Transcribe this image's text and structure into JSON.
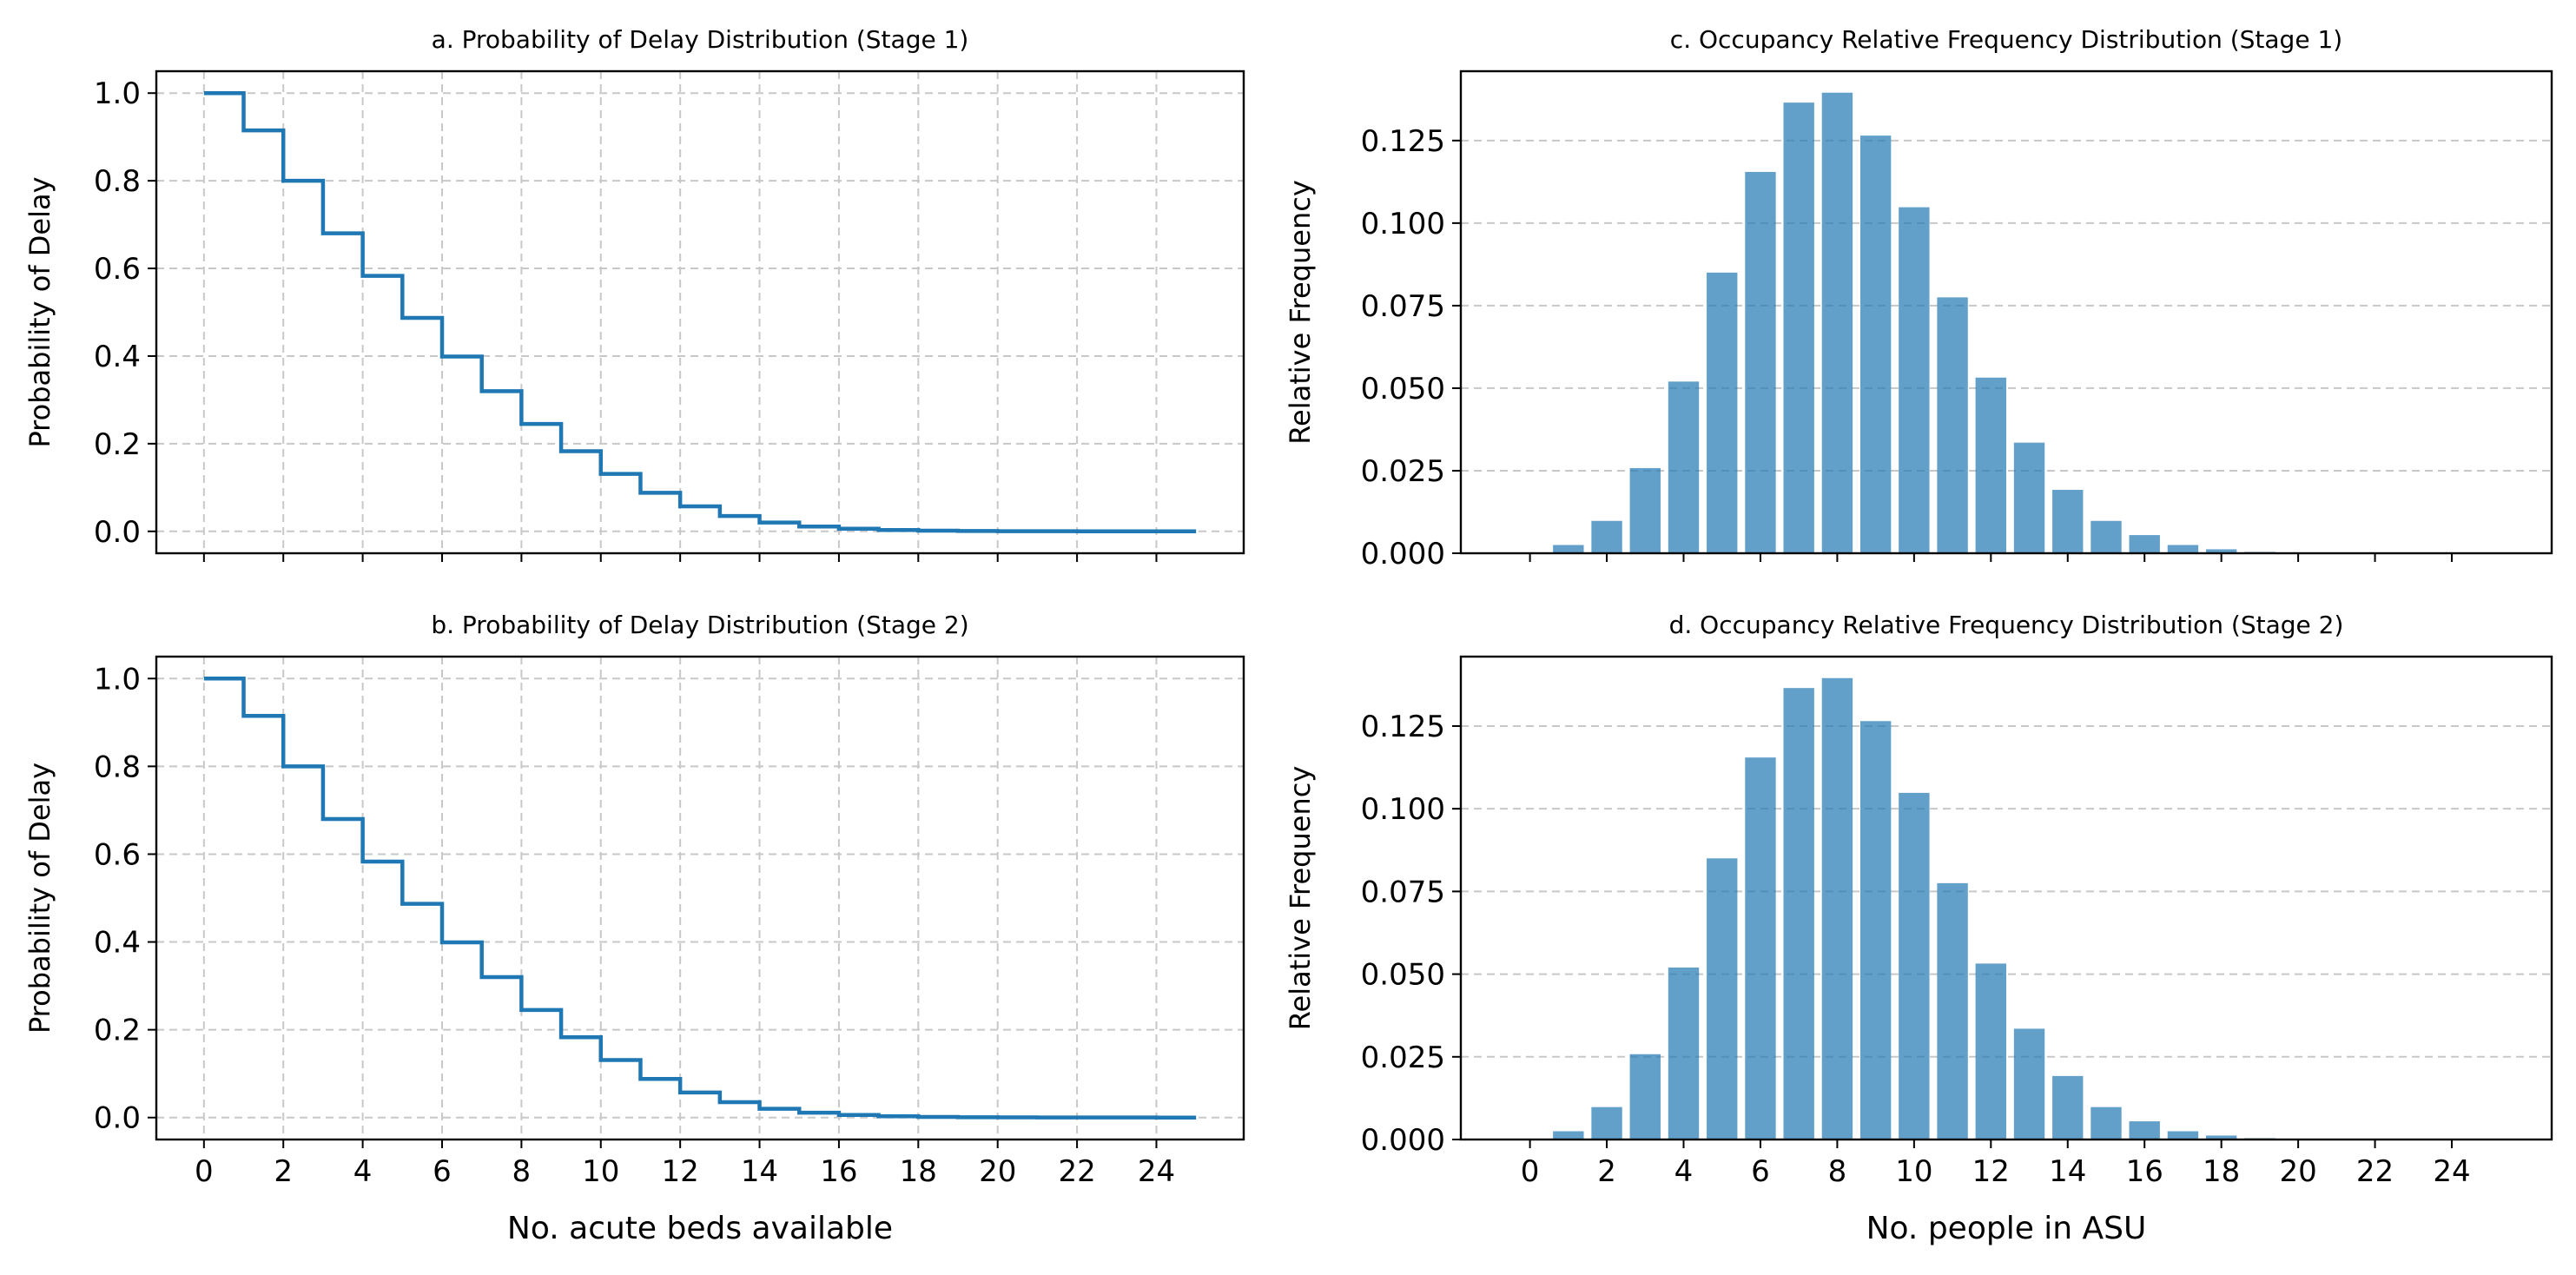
{
  "chart_data": [
    {
      "id": "a",
      "type": "line",
      "step": "post",
      "title": "a. Probability of Delay Distribution (Stage 1)",
      "xlabel": "",
      "ylabel": "Probability of Delay",
      "x": [
        0,
        1,
        2,
        3,
        4,
        5,
        6,
        7,
        8,
        9,
        10,
        11,
        12,
        13,
        14,
        15,
        16,
        17,
        18,
        19,
        20,
        21,
        22,
        23,
        24,
        25
      ],
      "y": [
        1.0,
        0.915,
        0.8,
        0.68,
        0.583,
        0.487,
        0.399,
        0.32,
        0.245,
        0.183,
        0.131,
        0.088,
        0.057,
        0.035,
        0.02,
        0.011,
        0.006,
        0.003,
        0.0015,
        0.0008,
        0.0004,
        0.0002,
        0.0001,
        0.0001,
        0.0,
        0.0
      ],
      "xlim": [
        -1.2,
        26.2
      ],
      "ylim": [
        -0.05,
        1.05
      ],
      "xticks": [
        0,
        2,
        4,
        6,
        8,
        10,
        12,
        14,
        16,
        18,
        20,
        22,
        24
      ],
      "xtick_labels_shown": false,
      "yticks": [
        0.0,
        0.2,
        0.4,
        0.6,
        0.8,
        1.0
      ],
      "ytick_labels": [
        "0.0",
        "0.2",
        "0.4",
        "0.6",
        "0.8",
        "1.0"
      ],
      "grid": "both",
      "color": "#1f77b4"
    },
    {
      "id": "c",
      "type": "bar",
      "title": "c. Occupancy Relative Frequency Distribution (Stage 1)",
      "xlabel": "",
      "ylabel": "Relative Frequency",
      "x": [
        0,
        1,
        2,
        3,
        4,
        5,
        6,
        7,
        8,
        9,
        10,
        11,
        12,
        13,
        14,
        15,
        16,
        17,
        18,
        19,
        20,
        21,
        22,
        23,
        24
      ],
      "values": [
        0.0,
        0.0025,
        0.0098,
        0.0258,
        0.052,
        0.085,
        0.1155,
        0.1365,
        0.1395,
        0.1265,
        0.1048,
        0.0775,
        0.0532,
        0.0335,
        0.0192,
        0.0098,
        0.0055,
        0.0025,
        0.0012,
        0.0004,
        0.0002,
        0.0001,
        0.0,
        0.0,
        0.0
      ],
      "xlim": [
        -1.8,
        26.6
      ],
      "ylim": [
        0.0,
        0.146
      ],
      "xticks": [
        0,
        2,
        4,
        6,
        8,
        10,
        12,
        14,
        16,
        18,
        20,
        22,
        24
      ],
      "xtick_labels_shown": false,
      "yticks": [
        0.0,
        0.025,
        0.05,
        0.075,
        0.1,
        0.125
      ],
      "ytick_labels": [
        "0.000",
        "0.025",
        "0.050",
        "0.075",
        "0.100",
        "0.125"
      ],
      "grid": "y",
      "color": "#1f77b4",
      "alpha": 0.7
    },
    {
      "id": "b",
      "type": "line",
      "step": "post",
      "title": "b. Probability of Delay Distribution (Stage 2)",
      "xlabel": "No. acute beds available",
      "ylabel": "Probability of Delay",
      "x": [
        0,
        1,
        2,
        3,
        4,
        5,
        6,
        7,
        8,
        9,
        10,
        11,
        12,
        13,
        14,
        15,
        16,
        17,
        18,
        19,
        20,
        21,
        22,
        23,
        24,
        25
      ],
      "y": [
        1.0,
        0.915,
        0.8,
        0.68,
        0.583,
        0.487,
        0.399,
        0.32,
        0.245,
        0.183,
        0.131,
        0.088,
        0.057,
        0.035,
        0.02,
        0.011,
        0.006,
        0.003,
        0.0015,
        0.0008,
        0.0004,
        0.0002,
        0.0001,
        0.0001,
        0.0,
        0.0
      ],
      "xlim": [
        -1.2,
        26.2
      ],
      "ylim": [
        -0.05,
        1.05
      ],
      "xticks": [
        0,
        2,
        4,
        6,
        8,
        10,
        12,
        14,
        16,
        18,
        20,
        22,
        24
      ],
      "xtick_labels": [
        "0",
        "2",
        "4",
        "6",
        "8",
        "10",
        "12",
        "14",
        "16",
        "18",
        "20",
        "22",
        "24"
      ],
      "xtick_labels_shown": true,
      "yticks": [
        0.0,
        0.2,
        0.4,
        0.6,
        0.8,
        1.0
      ],
      "ytick_labels": [
        "0.0",
        "0.2",
        "0.4",
        "0.6",
        "0.8",
        "1.0"
      ],
      "grid": "both",
      "color": "#1f77b4"
    },
    {
      "id": "d",
      "type": "bar",
      "title": "d. Occupancy Relative Frequency Distribution (Stage 2)",
      "xlabel": "No. people in ASU",
      "ylabel": "Relative Frequency",
      "x": [
        0,
        1,
        2,
        3,
        4,
        5,
        6,
        7,
        8,
        9,
        10,
        11,
        12,
        13,
        14,
        15,
        16,
        17,
        18,
        19,
        20,
        21,
        22,
        23,
        24
      ],
      "values": [
        0.0,
        0.0025,
        0.0098,
        0.0258,
        0.052,
        0.085,
        0.1155,
        0.1365,
        0.1395,
        0.1265,
        0.1048,
        0.0775,
        0.0532,
        0.0335,
        0.0192,
        0.0098,
        0.0055,
        0.0025,
        0.0012,
        0.0004,
        0.0002,
        0.0001,
        0.0,
        0.0,
        0.0
      ],
      "xlim": [
        -1.8,
        26.6
      ],
      "ylim": [
        0.0,
        0.146
      ],
      "xticks": [
        0,
        2,
        4,
        6,
        8,
        10,
        12,
        14,
        16,
        18,
        20,
        22,
        24
      ],
      "xtick_labels": [
        "0",
        "2",
        "4",
        "6",
        "8",
        "10",
        "12",
        "14",
        "16",
        "18",
        "20",
        "22",
        "24"
      ],
      "xtick_labels_shown": true,
      "yticks": [
        0.0,
        0.025,
        0.05,
        0.075,
        0.1,
        0.125
      ],
      "ytick_labels": [
        "0.000",
        "0.025",
        "0.050",
        "0.075",
        "0.100",
        "0.125"
      ],
      "grid": "y",
      "color": "#1f77b4",
      "alpha": 0.7
    }
  ]
}
